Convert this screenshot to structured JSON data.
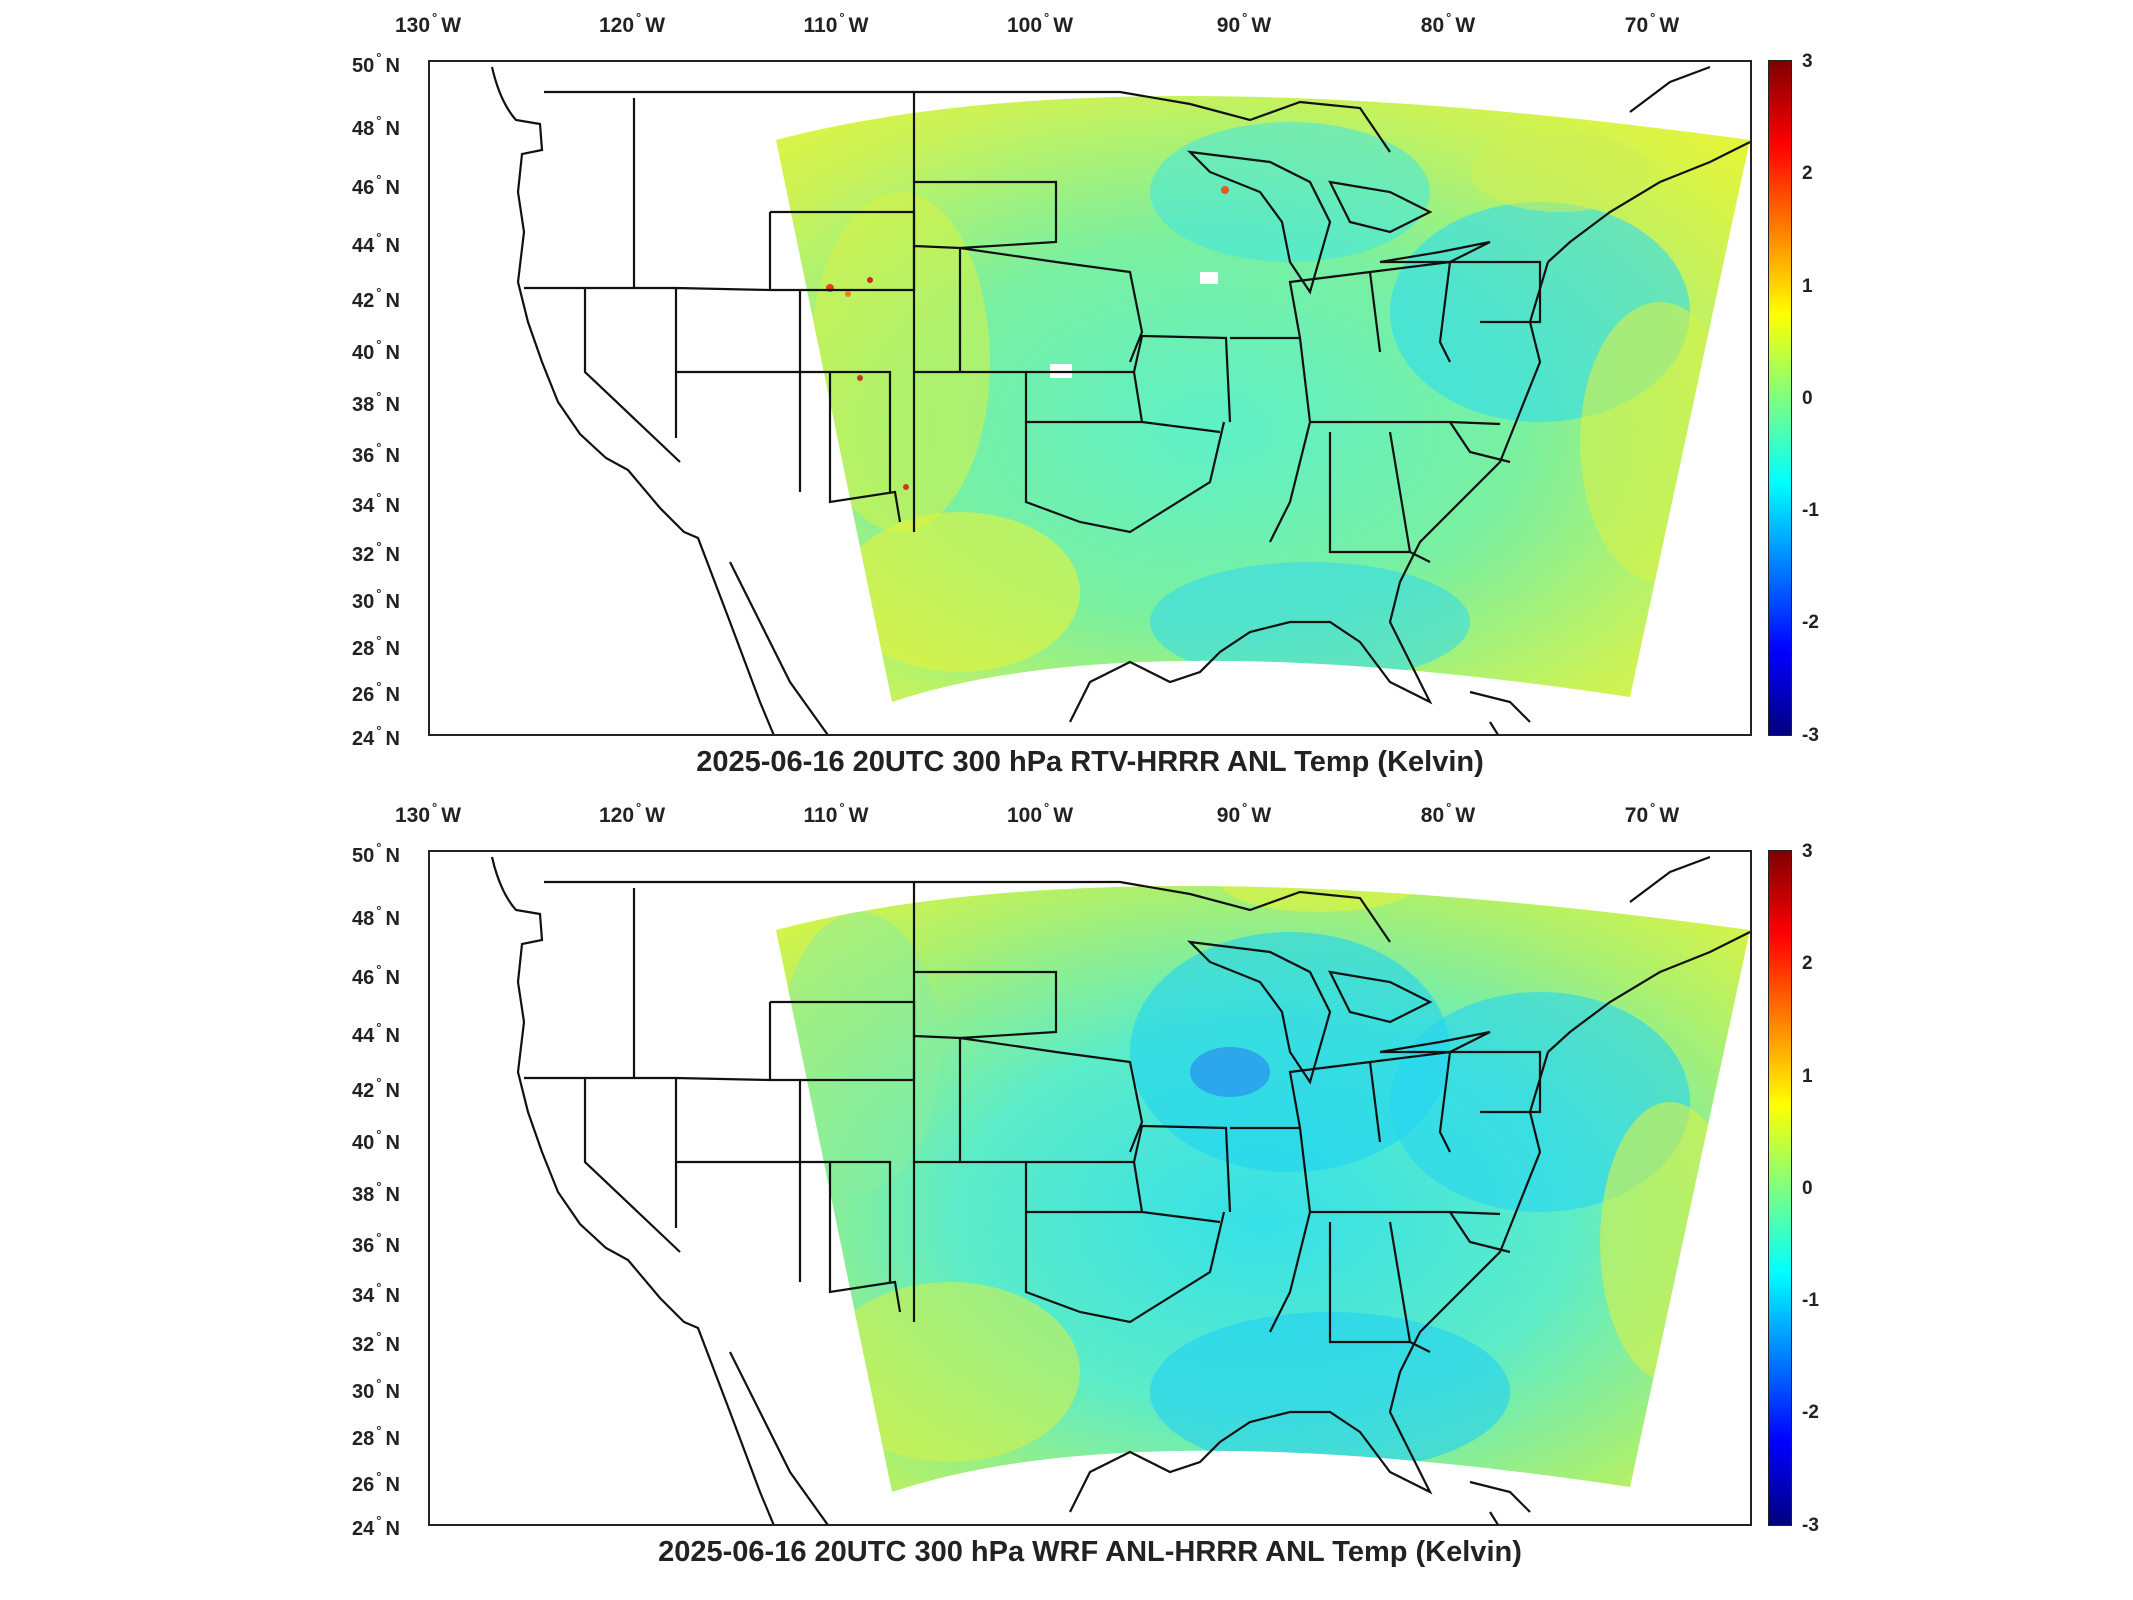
{
  "panels": [
    {
      "title": "2025-06-16 20UTC 300 hPa RTV-HRRR ANL Temp (Kelvin)",
      "lon_labels": [
        {
          "num": "130",
          "hem": "W"
        },
        {
          "num": "120",
          "hem": "W"
        },
        {
          "num": "110",
          "hem": "W"
        },
        {
          "num": "100",
          "hem": "W"
        },
        {
          "num": "90",
          "hem": "W"
        },
        {
          "num": "80",
          "hem": "W"
        },
        {
          "num": "70",
          "hem": "W"
        }
      ],
      "lat_labels": [
        {
          "num": "50",
          "hem": "N"
        },
        {
          "num": "48",
          "hem": "N"
        },
        {
          "num": "46",
          "hem": "N"
        },
        {
          "num": "44",
          "hem": "N"
        },
        {
          "num": "42",
          "hem": "N"
        },
        {
          "num": "40",
          "hem": "N"
        },
        {
          "num": "38",
          "hem": "N"
        },
        {
          "num": "36",
          "hem": "N"
        },
        {
          "num": "34",
          "hem": "N"
        },
        {
          "num": "32",
          "hem": "N"
        },
        {
          "num": "30",
          "hem": "N"
        },
        {
          "num": "28",
          "hem": "N"
        },
        {
          "num": "26",
          "hem": "N"
        },
        {
          "num": "24",
          "hem": "N"
        }
      ],
      "colorbar_ticks": [
        "3",
        "2",
        "1",
        "0",
        "-1",
        "-2",
        "-3"
      ],
      "field_mean_kelvin": 0.15
    },
    {
      "title": "2025-06-16 20UTC 300 hPa WRF ANL-HRRR ANL Temp (Kelvin)",
      "lon_labels": [
        {
          "num": "130",
          "hem": "W"
        },
        {
          "num": "120",
          "hem": "W"
        },
        {
          "num": "110",
          "hem": "W"
        },
        {
          "num": "100",
          "hem": "W"
        },
        {
          "num": "90",
          "hem": "W"
        },
        {
          "num": "80",
          "hem": "W"
        },
        {
          "num": "70",
          "hem": "W"
        }
      ],
      "lat_labels": [
        {
          "num": "50",
          "hem": "N"
        },
        {
          "num": "48",
          "hem": "N"
        },
        {
          "num": "46",
          "hem": "N"
        },
        {
          "num": "44",
          "hem": "N"
        },
        {
          "num": "42",
          "hem": "N"
        },
        {
          "num": "40",
          "hem": "N"
        },
        {
          "num": "38",
          "hem": "N"
        },
        {
          "num": "36",
          "hem": "N"
        },
        {
          "num": "34",
          "hem": "N"
        },
        {
          "num": "32",
          "hem": "N"
        },
        {
          "num": "30",
          "hem": "N"
        },
        {
          "num": "28",
          "hem": "N"
        },
        {
          "num": "26",
          "hem": "N"
        },
        {
          "num": "24",
          "hem": "N"
        }
      ],
      "colorbar_ticks": [
        "3",
        "2",
        "1",
        "0",
        "-1",
        "-2",
        "-3"
      ],
      "field_mean_kelvin": -0.2
    }
  ],
  "colors": {
    "colormap": [
      "#00007f",
      "#0000ff",
      "#007fff",
      "#00ffff",
      "#7fff7f",
      "#ffff00",
      "#ff7f00",
      "#ff0000",
      "#7f0000"
    ],
    "outline": "#111111"
  }
}
